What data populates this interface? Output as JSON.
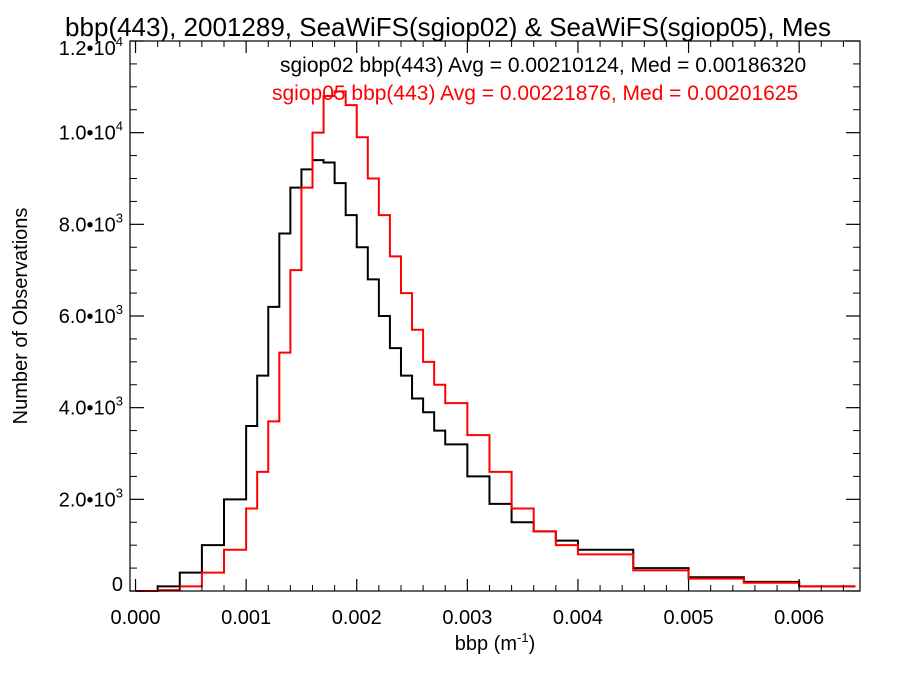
{
  "chart_data": {
    "type": "line",
    "title": "bbp(443), 2001289, SeaWiFS(sgiop02) & SeaWiFS(sgiop05), Mes",
    "xlabel": "bbp (m",
    "xlabel_sup": "-1",
    "xlabel_end": ")",
    "ylabel": "Number of Observations",
    "xlim": [
      -5e-05,
      0.00655
    ],
    "ylim": [
      0,
      12000
    ],
    "grid": false,
    "legend_position": "top-right",
    "x_ticks": [
      {
        "value": 0.0,
        "label": "0.000"
      },
      {
        "value": 0.001,
        "label": "0.001"
      },
      {
        "value": 0.002,
        "label": "0.002"
      },
      {
        "value": 0.003,
        "label": "0.003"
      },
      {
        "value": 0.004,
        "label": "0.004"
      },
      {
        "value": 0.005,
        "label": "0.005"
      },
      {
        "value": 0.006,
        "label": "0.006"
      }
    ],
    "y_ticks": [
      {
        "value": 0,
        "mant": "0",
        "exp": ""
      },
      {
        "value": 2000,
        "mant": "2.0•10",
        "exp": "3"
      },
      {
        "value": 4000,
        "mant": "4.0•10",
        "exp": "3"
      },
      {
        "value": 6000,
        "mant": "6.0•10",
        "exp": "3"
      },
      {
        "value": 8000,
        "mant": "8.0•10",
        "exp": "3"
      },
      {
        "value": 10000,
        "mant": "1.0•10",
        "exp": "4"
      },
      {
        "value": 12000,
        "mant": "1.2•10",
        "exp": "4"
      }
    ],
    "series": [
      {
        "name": "sgiop02 bbp(443) Avg = 0.00210124, Med = 0.00186320",
        "color": "#000000",
        "x": [
          0.0,
          0.0002,
          0.0004,
          0.0006,
          0.0008,
          0.001,
          0.0011,
          0.0012,
          0.0013,
          0.0014,
          0.0015,
          0.0016,
          0.0017,
          0.0018,
          0.0019,
          0.002,
          0.0021,
          0.0022,
          0.0023,
          0.0024,
          0.0025,
          0.0026,
          0.0027,
          0.0028,
          0.003,
          0.0032,
          0.0034,
          0.0036,
          0.0038,
          0.004,
          0.0045,
          0.005,
          0.0055,
          0.006,
          0.0065
        ],
        "y": [
          0,
          100,
          400,
          1000,
          2000,
          3600,
          4700,
          6200,
          7800,
          8800,
          9200,
          9400,
          9350,
          8900,
          8200,
          7500,
          6800,
          6000,
          5300,
          4700,
          4200,
          3900,
          3500,
          3200,
          2500,
          1900,
          1500,
          1300,
          1100,
          900,
          500,
          300,
          200,
          100,
          80
        ]
      },
      {
        "name": "sgiop05 bbp(443) Avg = 0.00221876, Med = 0.00201625",
        "color": "#ff0000",
        "x": [
          0.0,
          0.0002,
          0.0004,
          0.0006,
          0.0008,
          0.001,
          0.0011,
          0.0012,
          0.0013,
          0.0014,
          0.0015,
          0.0016,
          0.0017,
          0.0018,
          0.0019,
          0.002,
          0.0021,
          0.0022,
          0.0023,
          0.0024,
          0.0025,
          0.0026,
          0.0027,
          0.0028,
          0.003,
          0.0032,
          0.0034,
          0.0036,
          0.0038,
          0.004,
          0.0045,
          0.005,
          0.0055,
          0.006,
          0.0065
        ],
        "y": [
          0,
          20,
          100,
          400,
          900,
          1800,
          2600,
          3700,
          5200,
          7000,
          8800,
          10000,
          10800,
          10900,
          10600,
          9900,
          9000,
          8200,
          7300,
          6500,
          5700,
          5000,
          4500,
          4100,
          3400,
          2600,
          1800,
          1300,
          1000,
          800,
          450,
          270,
          180,
          100,
          80
        ]
      }
    ]
  }
}
